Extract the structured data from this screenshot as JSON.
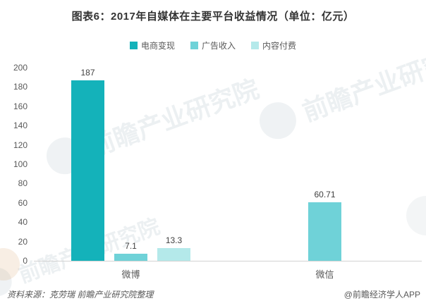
{
  "chart_data": {
    "type": "bar",
    "title": "图表6：2017年自媒体在主要平台收益情况（单位：亿元）",
    "unit": "亿元",
    "categories": [
      "微博",
      "微信"
    ],
    "series": [
      {
        "name": "电商变现",
        "color": "#14b2ba",
        "values": [
          187,
          null
        ]
      },
      {
        "name": "广告收入",
        "color": "#6fd2d8",
        "values": [
          7.1,
          60.71
        ]
      },
      {
        "name": "内容付费",
        "color": "#b4e9ea",
        "values": [
          13.3,
          null
        ]
      }
    ],
    "ylim": [
      0,
      200
    ],
    "ytick_step": 20,
    "grid": false,
    "legend_position": "top",
    "value_labels": [
      "187",
      "7.1",
      "13.3",
      "60.71"
    ]
  },
  "watermark": {
    "text": "前瞻产业研究院"
  },
  "footer": {
    "source": "资料来源：克劳瑞  前瞻产业研究院整理",
    "brand": "@前瞻经济学人APP"
  }
}
